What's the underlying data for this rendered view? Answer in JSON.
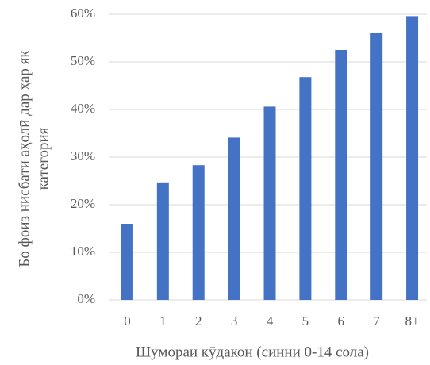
{
  "chart_data": {
    "type": "bar",
    "ylabel": [
      "Бо фоиз нисбати аҳолӣ дар ҳар як",
      "категория"
    ],
    "xlabel": "Шумораи кӯдакон (синни 0-14 сола)",
    "categories": [
      "0",
      "1",
      "2",
      "3",
      "4",
      "5",
      "6",
      "7",
      "8+"
    ],
    "values": [
      16,
      24.7,
      28.3,
      34.1,
      40.6,
      46.8,
      52.5,
      56,
      59.6
    ],
    "color": "#4472c4",
    "ylim": [
      0,
      60
    ],
    "yticks": [
      {
        "value": 0,
        "label": "0%"
      },
      {
        "value": 10,
        "label": "10%"
      },
      {
        "value": 20,
        "label": "20%"
      },
      {
        "value": 30,
        "label": "30%"
      },
      {
        "value": 40,
        "label": "40%"
      },
      {
        "value": 50,
        "label": "50%"
      },
      {
        "value": 60,
        "label": "60%"
      }
    ],
    "grid": true
  }
}
